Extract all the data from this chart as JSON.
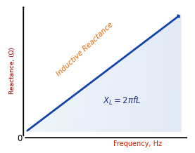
{
  "title": "",
  "xlabel": "Frequency, Hz",
  "ylabel": "Reactance, (Ω)",
  "xlabel_color": "#cc2200",
  "ylabel_color": "#880000",
  "line_color": "#2255bb",
  "arrow_color": "#1144aa",
  "fill_color": "#b8cce8",
  "label_inductive": "Inductive Reactance",
  "label_inductive_color": "#dd6600",
  "formula_color": "#223388",
  "background_color": "#ffffff",
  "zero_label": "0",
  "zero_color": "#000000"
}
